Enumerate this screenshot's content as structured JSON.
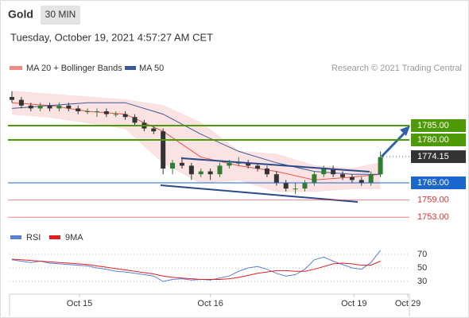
{
  "header": {
    "symbol": "Gold",
    "interval": "30 MIN",
    "timestamp": "Tuesday, October 19, 2021 4:57:27 AM CET",
    "source": "Research © 2021 Trading Central"
  },
  "chart_data": [
    {
      "type": "candlestick",
      "x": [
        0,
        1,
        2,
        3,
        4,
        5,
        6,
        7,
        8,
        9,
        10,
        11,
        12,
        13,
        14,
        15,
        16,
        17,
        18,
        19,
        20,
        21,
        22,
        23,
        24,
        25,
        26,
        27,
        28,
        29,
        30,
        31,
        32,
        33,
        34,
        35,
        36,
        37,
        38,
        39
      ],
      "open": [
        1795,
        1794,
        1792,
        1791,
        1792,
        1791,
        1792,
        1791,
        1790,
        1790,
        1790,
        1789,
        1789,
        1788,
        1786,
        1784,
        1783,
        1770,
        1772,
        1771,
        1768,
        1769,
        1768,
        1771,
        1772,
        1772,
        1771,
        1770,
        1768,
        1765,
        1763,
        1763,
        1765,
        1768,
        1770,
        1768,
        1767,
        1766,
        1765,
        1768
      ],
      "high": [
        1797,
        1795,
        1793,
        1793,
        1793,
        1793,
        1793,
        1792,
        1791,
        1791,
        1791,
        1790,
        1790,
        1789,
        1787,
        1785,
        1784,
        1773,
        1774,
        1772,
        1770,
        1770,
        1772,
        1773,
        1774,
        1773,
        1772,
        1771,
        1769,
        1766,
        1765,
        1766,
        1769,
        1771,
        1771,
        1769,
        1768,
        1767,
        1769,
        1776
      ],
      "low": [
        1793,
        1791,
        1790,
        1790,
        1790,
        1790,
        1790,
        1789,
        1789,
        1788,
        1788,
        1788,
        1787,
        1785,
        1783,
        1782,
        1768,
        1768,
        1770,
        1766,
        1767,
        1766,
        1767,
        1770,
        1771,
        1770,
        1769,
        1767,
        1764,
        1762,
        1761,
        1762,
        1764,
        1767,
        1767,
        1766,
        1765,
        1764,
        1764,
        1767
      ],
      "close": [
        1794,
        1792,
        1791,
        1792,
        1791,
        1792,
        1791,
        1790,
        1790,
        1790,
        1789,
        1789,
        1788,
        1786,
        1784,
        1783,
        1770,
        1772,
        1771,
        1768,
        1769,
        1768,
        1771,
        1772,
        1772,
        1771,
        1770,
        1768,
        1765,
        1763,
        1763,
        1765,
        1768,
        1770,
        1768,
        1767,
        1766,
        1765,
        1768,
        1774
      ],
      "up_color": "#2f7d32",
      "down_color": "#333333",
      "ylim": [
        1750,
        1802
      ],
      "xlim": [
        0,
        44
      ],
      "series": [
        {
          "name": "MA 20 + Bollinger Bands",
          "color": "#e8564f",
          "band_color": "#fbdcdc",
          "x": [
            0,
            4,
            8,
            12,
            16,
            20,
            24,
            28,
            32,
            36,
            39
          ],
          "values": [
            1793,
            1792,
            1790,
            1789,
            1783,
            1774,
            1771,
            1769,
            1766,
            1767,
            1768
          ],
          "band_upper": [
            1797,
            1796,
            1795,
            1794,
            1792,
            1786,
            1776,
            1775,
            1771,
            1770,
            1772
          ],
          "band_lower": [
            1789,
            1788,
            1786,
            1784,
            1772,
            1765,
            1766,
            1762,
            1762,
            1763,
            1763
          ]
        },
        {
          "name": "MA 50",
          "color": "#3b5998",
          "x": [
            0,
            4,
            8,
            12,
            16,
            20,
            24,
            28,
            32,
            36,
            39
          ],
          "values": [
            1791,
            1792,
            1793,
            1793,
            1789,
            1782,
            1776,
            1772,
            1769,
            1768,
            1768
          ]
        }
      ],
      "levels": [
        {
          "value": 1785,
          "label": "1785.00",
          "color": "#4e9a06",
          "style": "box"
        },
        {
          "value": 1780,
          "label": "1780.00",
          "color": "#4e9a06",
          "style": "box"
        },
        {
          "value": 1774.15,
          "label": "1774.15",
          "color": "#333333",
          "style": "dotted-box"
        },
        {
          "value": 1765,
          "label": "1765.00",
          "color": "#1a66cc",
          "style": "box"
        },
        {
          "value": 1759,
          "label": "1759.00",
          "color": "#e03030",
          "style": "text"
        },
        {
          "value": 1753,
          "label": "1753.00",
          "color": "#e03030",
          "style": "text"
        }
      ]
    },
    {
      "type": "line",
      "x": [
        0,
        1,
        2,
        3,
        4,
        5,
        6,
        7,
        8,
        9,
        10,
        11,
        12,
        13,
        14,
        15,
        16,
        17,
        18,
        19,
        20,
        21,
        22,
        23,
        24,
        25,
        26,
        27,
        28,
        29,
        30,
        31,
        32,
        33,
        34,
        35,
        36,
        37,
        38,
        39
      ],
      "series": [
        {
          "name": "RSI",
          "color": "#5b7fd6",
          "values": [
            62,
            60,
            58,
            60,
            57,
            56,
            55,
            54,
            53,
            50,
            48,
            45,
            44,
            42,
            40,
            38,
            30,
            33,
            34,
            32,
            33,
            32,
            35,
            38,
            45,
            50,
            52,
            48,
            42,
            38,
            40,
            48,
            62,
            66,
            60,
            55,
            50,
            48,
            58,
            76
          ]
        },
        {
          "name": "9MA",
          "color": "#e02020",
          "values": [
            63,
            62,
            61,
            60,
            59,
            58,
            57,
            56,
            55,
            53,
            51,
            49,
            47,
            45,
            43,
            41,
            38,
            36,
            35,
            34,
            33,
            33,
            33,
            34,
            36,
            39,
            42,
            44,
            46,
            46,
            45,
            45,
            48,
            52,
            56,
            57,
            56,
            54,
            54,
            60
          ]
        }
      ],
      "ylim": [
        14,
        88
      ],
      "yticks": [
        70,
        50,
        30
      ],
      "grid": true,
      "xlim": [
        0,
        44
      ],
      "xticks": [
        {
          "value": 7.15,
          "label": "Oct 15"
        },
        {
          "value": 21.0,
          "label": "Oct 16"
        },
        {
          "value": 36.2,
          "label": "Oct 19"
        },
        {
          "value": 41.9,
          "label": "Oct 29"
        }
      ]
    }
  ]
}
